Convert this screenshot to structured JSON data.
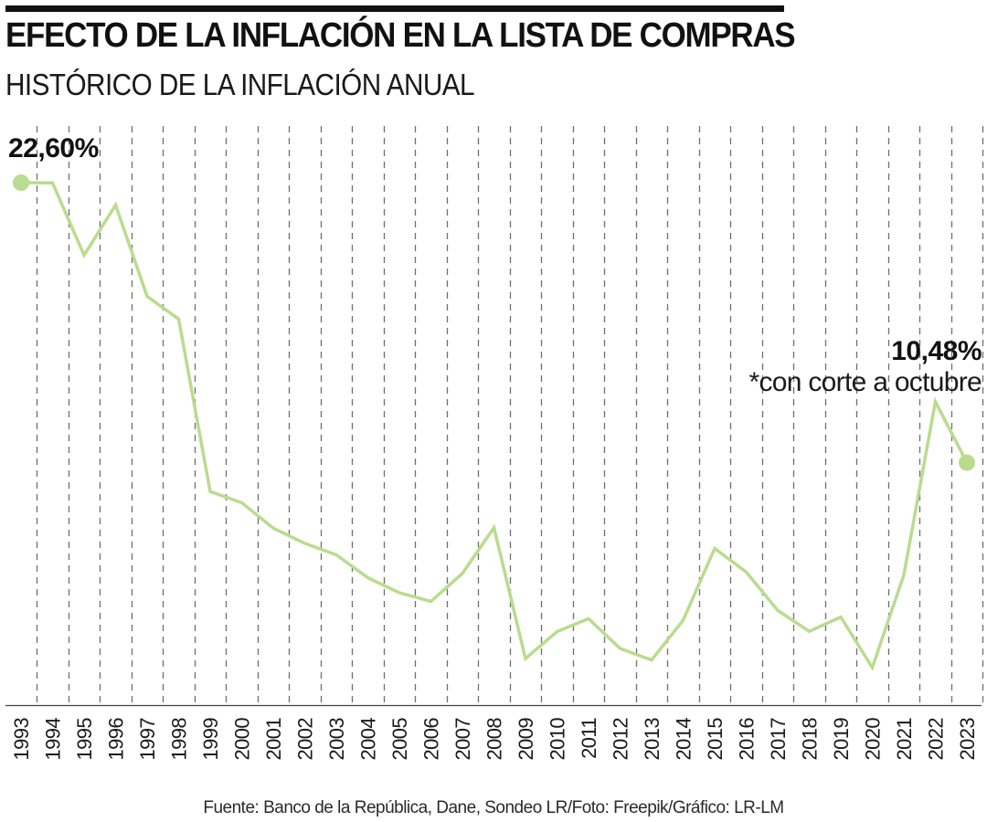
{
  "header": {
    "title": "EFECTO DE LA INFLACIÓN EN LA LISTA DE COMPRAS",
    "subtitle": "HISTÓRICO DE LA INFLACIÓN ANUAL"
  },
  "footer": {
    "source": "Fuente: Banco de la República, Dane, Sondeo LR/Foto: Freepik/Gráfico: LR-LM"
  },
  "chart_data": {
    "type": "line",
    "title": "HISTÓRICO DE LA INFLACIÓN ANUAL",
    "xlabel": "",
    "ylabel": "",
    "grid": "vertical dashed",
    "x": [
      "1993",
      "1994",
      "1995",
      "1996",
      "1997",
      "1998",
      "1999",
      "2000",
      "2001",
      "2002",
      "2003",
      "2004",
      "2005",
      "2006",
      "2007",
      "2008",
      "2009",
      "2010",
      "2011",
      "2012",
      "2013",
      "2014",
      "2015",
      "2016",
      "2017",
      "2018",
      "2019",
      "2020",
      "2021",
      "2022",
      "2023"
    ],
    "series": [
      {
        "values": [
          22.6,
          22.59,
          19.46,
          21.63,
          17.68,
          16.7,
          9.23,
          8.75,
          7.65,
          6.99,
          6.49,
          5.5,
          4.85,
          4.48,
          5.69,
          7.67,
          2.0,
          3.17,
          3.73,
          2.44,
          1.94,
          3.66,
          6.77,
          5.75,
          4.09,
          3.18,
          3.8,
          1.61,
          5.62,
          13.12,
          10.48
        ]
      }
    ],
    "line_color": "#b9dc8e",
    "annotations": {
      "first": {
        "label": "22,60%"
      },
      "last": {
        "label": "10,48%",
        "note": "*con corte a octubre"
      }
    }
  }
}
